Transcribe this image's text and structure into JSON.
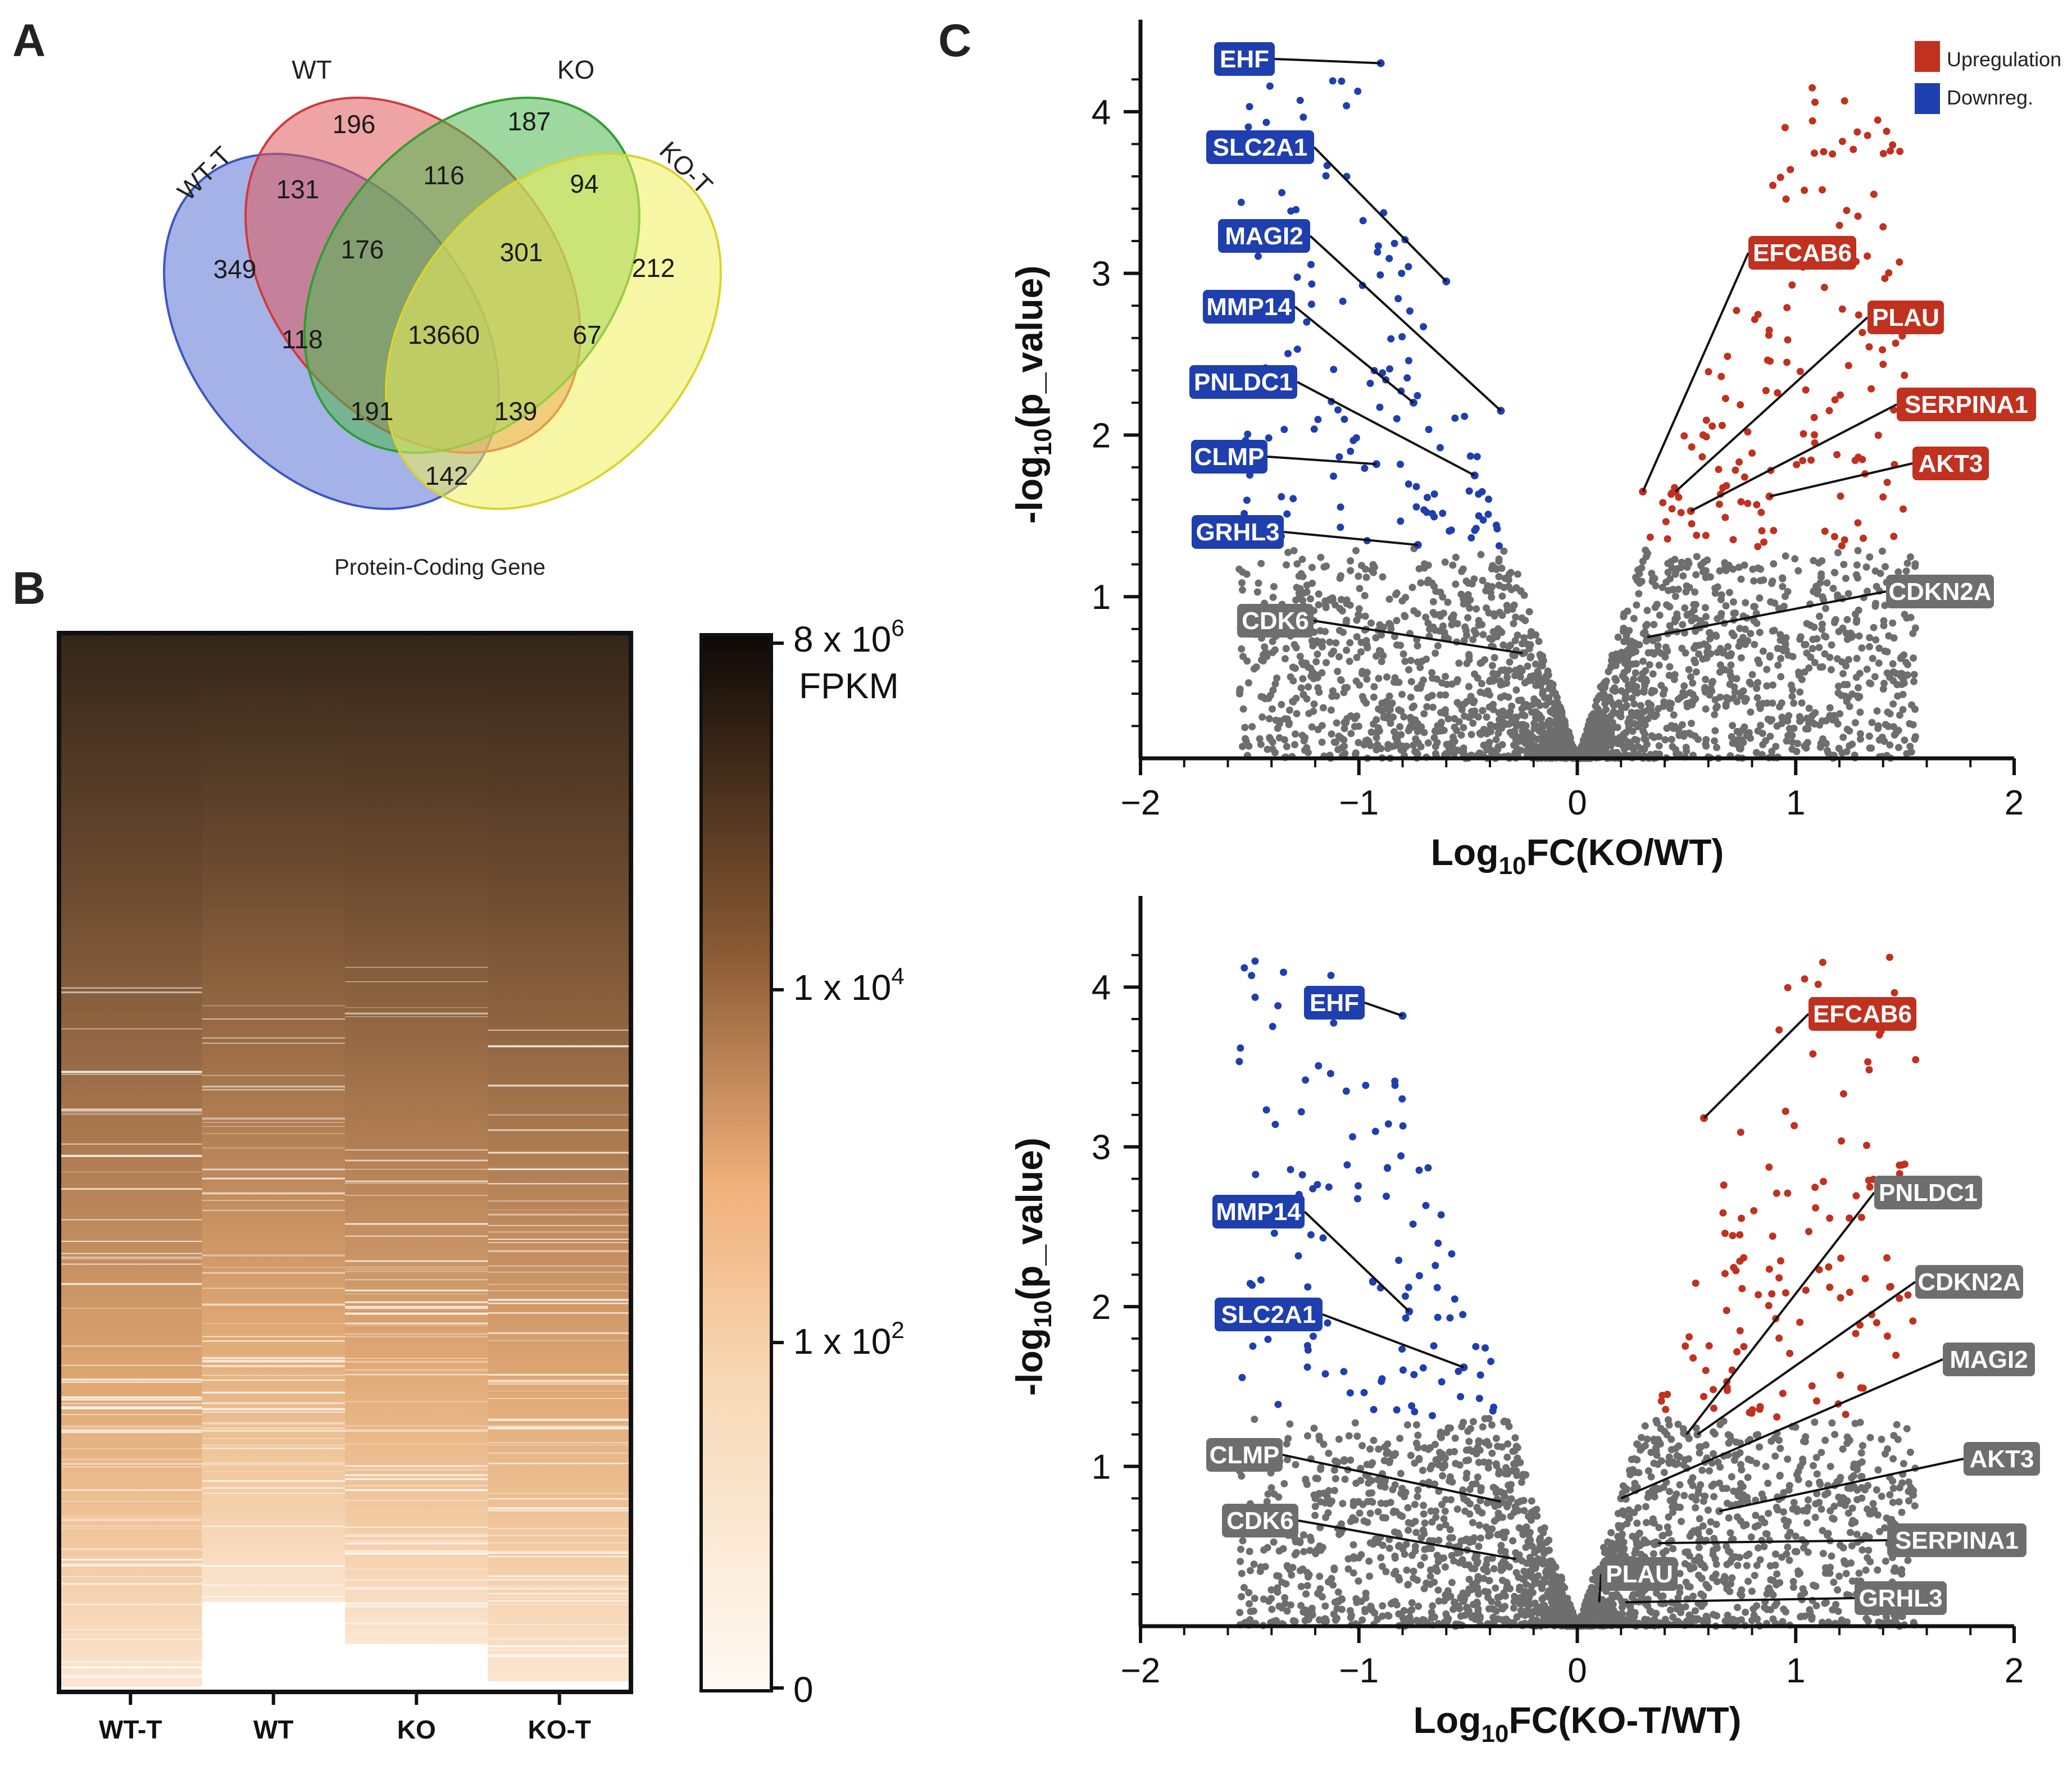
{
  "panels": {
    "a": "A",
    "b": "B",
    "c": "C"
  },
  "colors": {
    "up": "#c0311f",
    "down": "#1f3fae",
    "ns": "#6e6e6e",
    "wt": "#e05a5a",
    "ko": "#4fb84f",
    "wtt": "#5a73d6",
    "kot": "#f0ee5a"
  },
  "venn": {
    "title": "Protein-Coding Gene",
    "sets": {
      "wt": "WT",
      "ko": "KO",
      "wtt": "WT-T",
      "kot": "KO-T"
    },
    "counts": {
      "wt_only": "196",
      "ko_only": "187",
      "wtt_only": "349",
      "kot_only": "212",
      "wt_ko": "116",
      "wt_wtt": "131",
      "ko_kot": "94",
      "wt_ko_wtt": "176",
      "wt_ko_kot": "301",
      "all": "13660",
      "wtt_ko": "118",
      "wt_kot": "67",
      "wtt_ko_kot": "191",
      "wt_wtt_kot": "139",
      "wtt_kot": "142"
    }
  },
  "heatmap": {
    "columns": [
      "WT-T",
      "WT",
      "KO",
      "KO-T"
    ],
    "colorbar": {
      "top": "8 x 10",
      "top_exp": "6",
      "unit": "FPKM",
      "mid1": "1 x 10",
      "mid1_exp": "4",
      "mid2": "1 x 10",
      "mid2_exp": "2",
      "bottom": "0"
    }
  },
  "legend": {
    "up": "Upregulation",
    "down": "Downreg."
  },
  "chart_data": [
    {
      "type": "scatter",
      "title": "",
      "xlabel": "Log10FC(KO/WT)",
      "xlabel_parts": {
        "a": "Log",
        "sub": "10",
        "b": "FC(KO/WT)"
      },
      "ylabel_parts": {
        "a": "-log",
        "sub": "10",
        "b": "(p_value)"
      },
      "xlim": [
        -2,
        2
      ],
      "ylim": [
        0,
        4.5
      ],
      "xticks": [
        "−2",
        "−1",
        "0",
        "1",
        "2"
      ],
      "yticks": [
        "1",
        "2",
        "3",
        "4"
      ],
      "labels": [
        {
          "gene": "EHF",
          "x": -0.9,
          "y": 4.3,
          "cls": "down"
        },
        {
          "gene": "SLC2A1",
          "x": -0.6,
          "y": 2.95,
          "cls": "down"
        },
        {
          "gene": "MAGI2",
          "x": -0.35,
          "y": 2.15,
          "cls": "down"
        },
        {
          "gene": "MMP14",
          "x": -0.75,
          "y": 2.2,
          "cls": "down"
        },
        {
          "gene": "PNLDC1",
          "x": -0.47,
          "y": 1.75,
          "cls": "down"
        },
        {
          "gene": "CLMP",
          "x": -0.92,
          "y": 1.82,
          "cls": "down"
        },
        {
          "gene": "GRHL3",
          "x": -0.73,
          "y": 1.32,
          "cls": "down"
        },
        {
          "gene": "CDK6",
          "x": -0.25,
          "y": 0.65,
          "cls": "ns"
        },
        {
          "gene": "EFCAB6",
          "x": 0.3,
          "y": 1.65,
          "cls": "up"
        },
        {
          "gene": "PLAU",
          "x": 0.45,
          "y": 1.65,
          "cls": "up"
        },
        {
          "gene": "SERPINA1",
          "x": 0.52,
          "y": 1.53,
          "cls": "up"
        },
        {
          "gene": "AKT3",
          "x": 0.88,
          "y": 1.62,
          "cls": "up"
        },
        {
          "gene": "CDKN2A",
          "x": 0.32,
          "y": 0.75,
          "cls": "ns"
        }
      ]
    },
    {
      "type": "scatter",
      "title": "",
      "xlabel": "Log10FC(KO-T/WT)",
      "xlabel_parts": {
        "a": "Log",
        "sub": "10",
        "b": "FC(KO-T/WT)"
      },
      "ylabel_parts": {
        "a": "-log",
        "sub": "10",
        "b": "(p_value)"
      },
      "xlim": [
        -2,
        2
      ],
      "ylim": [
        0,
        4.5
      ],
      "xticks": [
        "−2",
        "−1",
        "0",
        "1",
        "2"
      ],
      "yticks": [
        "1",
        "2",
        "3",
        "4"
      ],
      "labels": [
        {
          "gene": "EHF",
          "x": -0.8,
          "y": 3.82,
          "cls": "down"
        },
        {
          "gene": "EFCAB6",
          "x": 0.58,
          "y": 3.18,
          "cls": "up"
        },
        {
          "gene": "MMP14",
          "x": -0.77,
          "y": 1.97,
          "cls": "down"
        },
        {
          "gene": "SLC2A1",
          "x": -0.52,
          "y": 1.62,
          "cls": "down"
        },
        {
          "gene": "PNLDC1",
          "x": 0.5,
          "y": 1.2,
          "cls": "ns"
        },
        {
          "gene": "CDKN2A",
          "x": 0.55,
          "y": 1.2,
          "cls": "ns"
        },
        {
          "gene": "MAGI2",
          "x": 0.2,
          "y": 0.8,
          "cls": "ns"
        },
        {
          "gene": "AKT3",
          "x": 0.65,
          "y": 0.72,
          "cls": "ns"
        },
        {
          "gene": "CLMP",
          "x": -0.35,
          "y": 0.78,
          "cls": "ns"
        },
        {
          "gene": "SERPINA1",
          "x": 0.37,
          "y": 0.52,
          "cls": "ns"
        },
        {
          "gene": "CDK6",
          "x": -0.28,
          "y": 0.42,
          "cls": "ns"
        },
        {
          "gene": "PLAU",
          "x": 0.1,
          "y": 0.15,
          "cls": "ns"
        },
        {
          "gene": "GRHL3",
          "x": 0.22,
          "y": 0.15,
          "cls": "ns"
        }
      ]
    }
  ]
}
